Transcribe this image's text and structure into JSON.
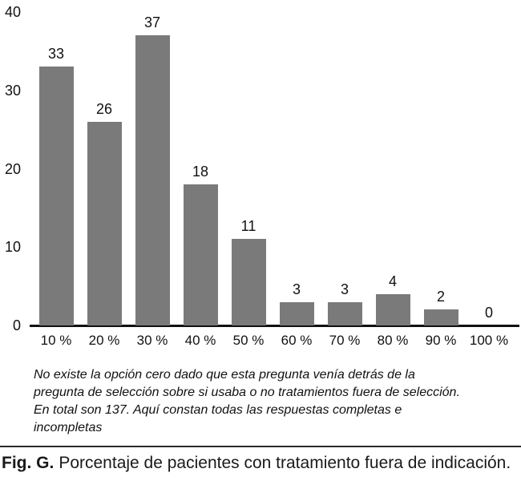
{
  "chart_data": {
    "type": "bar",
    "categories": [
      "10 %",
      "20 %",
      "30 %",
      "40 %",
      "50 %",
      "60 %",
      "70 %",
      "80 %",
      "90 %",
      "100 %"
    ],
    "values": [
      33,
      26,
      37,
      18,
      11,
      3,
      3,
      4,
      2,
      0
    ],
    "bar_labels": [
      "33",
      "26",
      "37",
      "18",
      "11",
      "3",
      "3",
      "4",
      "2",
      "0"
    ],
    "yticks": [
      0,
      10,
      20,
      30,
      40
    ],
    "ylim": [
      0,
      40
    ],
    "title": "",
    "xlabel": "",
    "ylabel": "",
    "grid": false,
    "legend_position": "none",
    "bar_color": "#7a7a7a",
    "axis_color": "#111111"
  },
  "note": {
    "lines": [
      "No existe la opción cero dado que esta pregunta venía detrás de la",
      "pregunta de selección sobre si usaba o no tratamientos fuera de selección.",
      "En total son 137. Aquí constan todas las respuestas completas e",
      "incompletas"
    ]
  },
  "caption": {
    "label": "Fig. G.",
    "text": "Porcentaje de pacientes con tratamiento fuera de indicación."
  }
}
